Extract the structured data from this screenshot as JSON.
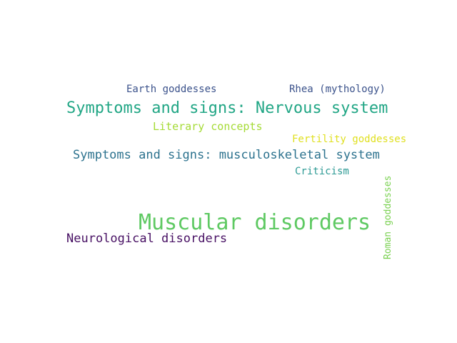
{
  "wordcloud": {
    "words": [
      {
        "text": "Earth goddesses",
        "color": "#3b528b"
      },
      {
        "text": "Rhea (mythology)",
        "color": "#3b528b"
      },
      {
        "text": "Symptoms and signs: Nervous system",
        "color": "#21a685"
      },
      {
        "text": "Literary concepts",
        "color": "#a5db36"
      },
      {
        "text": "Fertility goddesses",
        "color": "#e0e020"
      },
      {
        "text": "Symptoms and signs: musculoskeletal system",
        "color": "#2c728e"
      },
      {
        "text": "Criticism",
        "color": "#2c9a94"
      },
      {
        "text": "Muscular disorders",
        "color": "#5ec962"
      },
      {
        "text": "Neurological disorders",
        "color": "#471063"
      },
      {
        "text": "Roman goddesses",
        "color": "#7ad151"
      }
    ]
  }
}
